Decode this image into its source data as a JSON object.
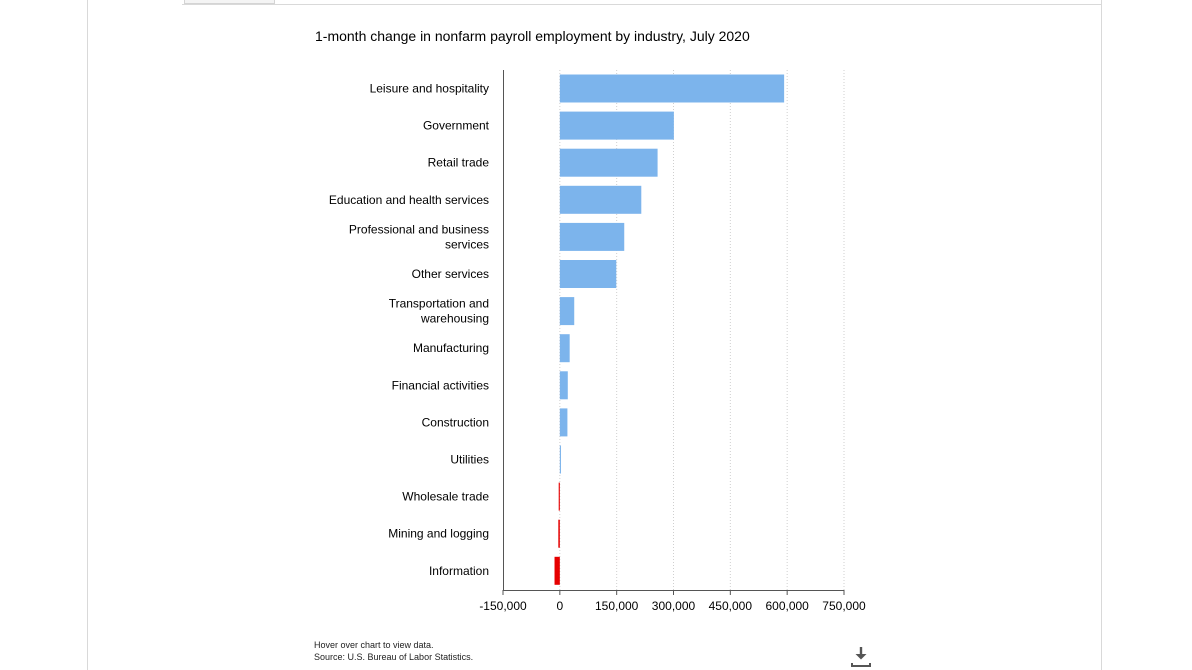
{
  "notes": {
    "hover": "Hover over chart to view data.",
    "source": "Source: U.S. Bureau of Labor Statistics."
  },
  "icons": {
    "download": "download-icon"
  },
  "colors": {
    "positive": "#7cb4ec",
    "negative": "#e60000",
    "grid": "#cfcfcf",
    "axis": "#555555"
  },
  "chart_data": {
    "type": "bar",
    "orientation": "horizontal",
    "title": "1-month change in nonfarm payroll employment by industry, July 2020",
    "xlabel": "",
    "ylabel": "",
    "xlim": [
      -150000,
      750000
    ],
    "x_ticks": [
      -150000,
      0,
      150000,
      300000,
      450000,
      600000,
      750000
    ],
    "x_tick_labels": [
      "-150,000",
      "0",
      "150,000",
      "300,000",
      "450,000",
      "600,000",
      "750,000"
    ],
    "grid": true,
    "legend": "none",
    "categories": [
      "Leisure and hospitality",
      "Government",
      "Retail trade",
      "Education and health services",
      "Professional and business services",
      "Other services",
      "Transportation and warehousing",
      "Manufacturing",
      "Financial activities",
      "Construction",
      "Utilities",
      "Wholesale trade",
      "Mining and logging",
      "Information"
    ],
    "category_label_lines": [
      [
        "Leisure and hospitality"
      ],
      [
        "Government"
      ],
      [
        "Retail trade"
      ],
      [
        "Education and health services"
      ],
      [
        "Professional and business",
        "services"
      ],
      [
        "Other services"
      ],
      [
        "Transportation and",
        "warehousing"
      ],
      [
        "Manufacturing"
      ],
      [
        "Financial activities"
      ],
      [
        "Construction"
      ],
      [
        "Utilities"
      ],
      [
        "Wholesale trade"
      ],
      [
        "Mining and logging"
      ],
      [
        "Information"
      ]
    ],
    "values": [
      592000,
      301000,
      258000,
      215000,
      170000,
      149000,
      38000,
      26000,
      21000,
      20000,
      3000,
      -3000,
      -4000,
      -14000
    ]
  }
}
